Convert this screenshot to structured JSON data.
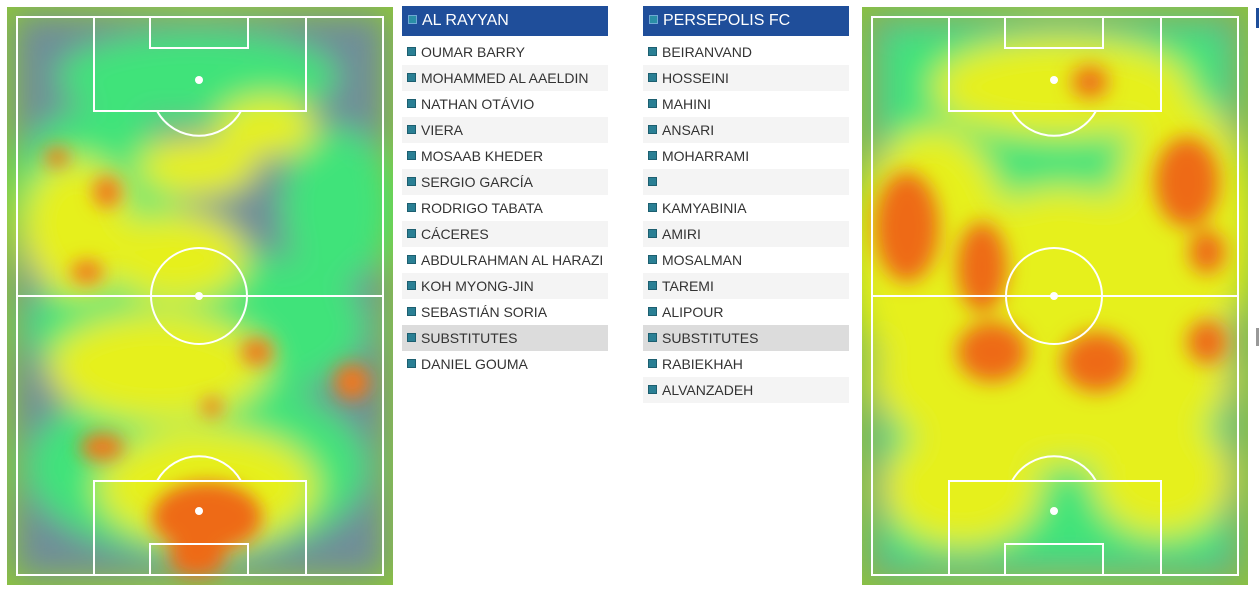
{
  "colors": {
    "header_bg": "#1f4e9a",
    "substitutes_bg": "#dcdcdc",
    "alt_row_bg": "#f4f4f4",
    "bullet": "#2a7f94",
    "heat_low": "#6d8c9a",
    "heat_mid": "#3ee87a",
    "heat_high": "#f4f21c",
    "heat_peak": "#ee6612",
    "pitch_line": "#ffffff"
  },
  "home": {
    "team_name": "AL RAYYAN",
    "players": [
      "OUMAR BARRY",
      "MOHAMMED AL AAELDIN",
      "NATHAN OTÁVIO",
      "VIERA",
      "MOSAAB KHEDER",
      "SERGIO GARCÍA",
      "RODRIGO TABATA",
      "CÁCERES",
      "ABDULRAHMAN AL HARAZI",
      "KOH MYONG-JIN",
      "SEBASTIÁN SORIA"
    ],
    "substitutes_label": "SUBSTITUTES",
    "substitutes": [
      "DANIEL GOUMA"
    ]
  },
  "away": {
    "team_name": "PERSEPOLIS FC",
    "players": [
      "BEIRANVAND",
      "HOSSEINI",
      "MAHINI",
      "ANSARI",
      "MOHARRAMI",
      "",
      "KAMYABINIA",
      "AMIRI",
      "MOSALMAN",
      "TAREMI",
      "ALIPOUR"
    ],
    "substitutes_label": "SUBSTITUTES",
    "substitutes": [
      "RABIEKHAH",
      "ALVANZADEH"
    ]
  }
}
